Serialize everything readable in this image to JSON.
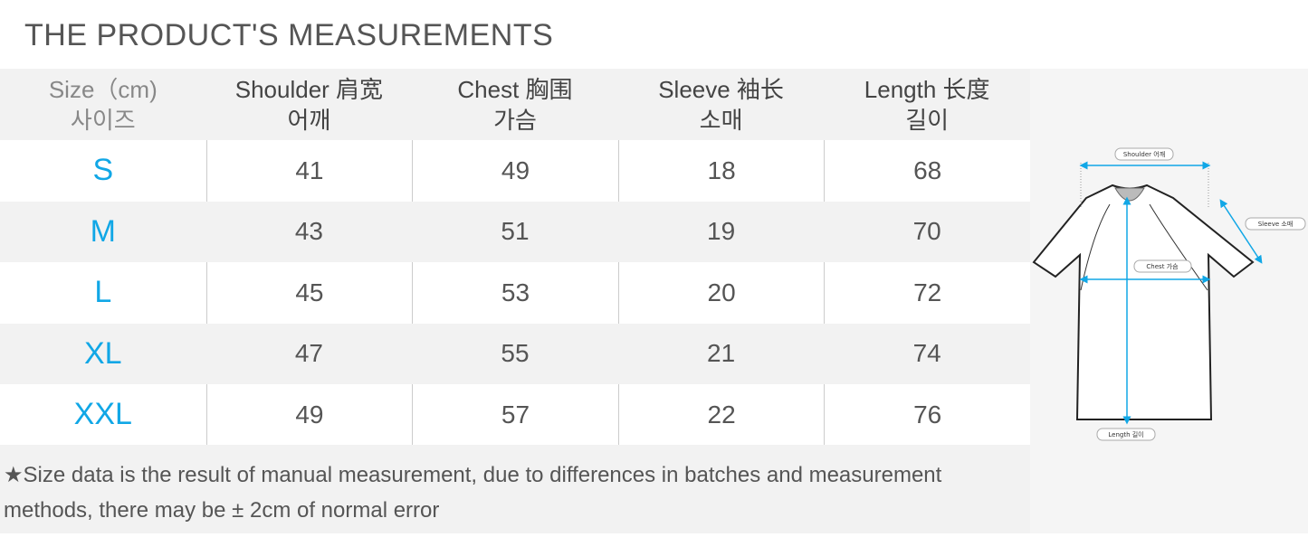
{
  "title": "THE PRODUCT'S MEASUREMENTS",
  "headers": [
    {
      "en": "Size（cm)",
      "ko": "사이즈"
    },
    {
      "en": "Shoulder 肩宽",
      "ko": "어깨"
    },
    {
      "en": "Chest  胸围",
      "ko": "가슴"
    },
    {
      "en": "Sleeve 袖长",
      "ko": "소매"
    },
    {
      "en": "Length 长度",
      "ko": "길이"
    }
  ],
  "rows": [
    {
      "size": "S",
      "shoulder": "41",
      "chest": "49",
      "sleeve": "18",
      "length": "68"
    },
    {
      "size": "M",
      "shoulder": "43",
      "chest": "51",
      "sleeve": "19",
      "length": "70"
    },
    {
      "size": "L",
      "shoulder": "45",
      "chest": "53",
      "sleeve": "20",
      "length": "72"
    },
    {
      "size": "XL",
      "shoulder": "47",
      "chest": "55",
      "sleeve": "21",
      "length": "74"
    },
    {
      "size": "XXL",
      "shoulder": "49",
      "chest": "57",
      "sleeve": "22",
      "length": "76"
    }
  ],
  "note": "★Size data is the result of manual measurement, due to differences in batches and measurement methods, there may be ± 2cm of normal error",
  "diagram": {
    "shoulder": "Shoulder 어깨",
    "sleeve": "Sleeve 소매",
    "chest": "Chest 가슴",
    "length": "Length 길이"
  },
  "colors": {
    "accent": "#11a7e6",
    "header_bg": "#f2f2f2"
  }
}
